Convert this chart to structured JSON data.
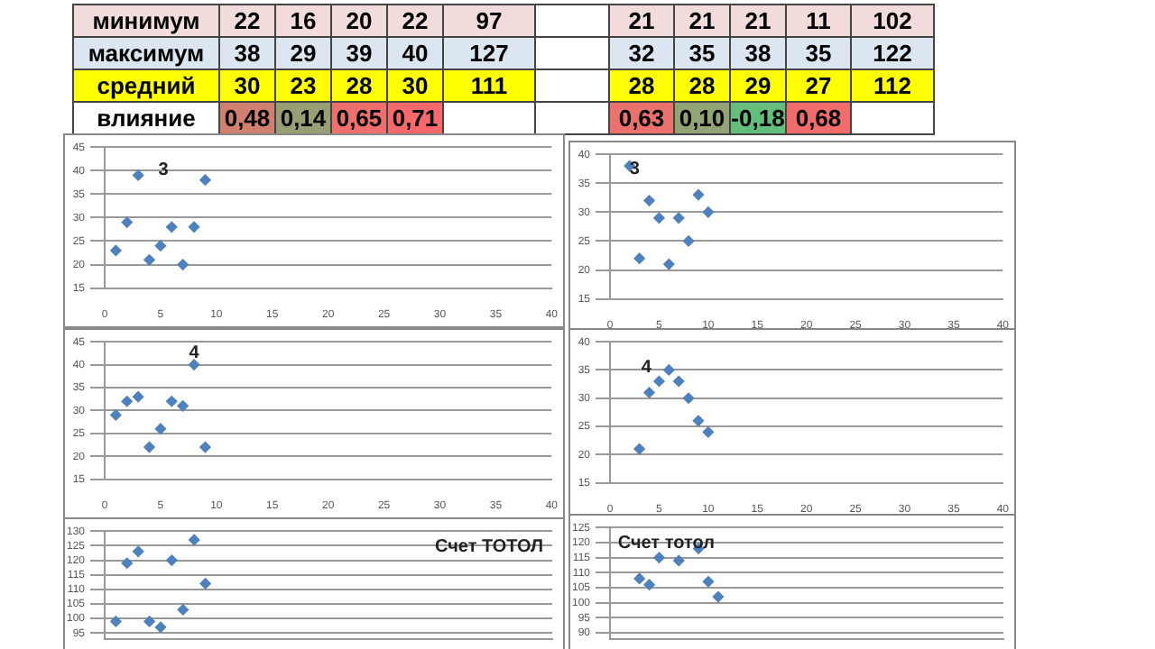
{
  "chart_data": [
    {
      "type": "other",
      "categories": [
        null,
        null,
        null,
        null,
        null,
        null,
        null,
        null,
        null,
        null,
        null
      ],
      "y_categories": [
        "минимум",
        "максимум",
        "средний",
        "влияние"
      ],
      "cell_labels": [
        [
          "22",
          "16",
          "20",
          "22",
          "97",
          null,
          "21",
          "21",
          "21",
          "11",
          "102"
        ],
        [
          "38",
          "29",
          "39",
          "40",
          "127",
          null,
          "32",
          "35",
          "38",
          "35",
          "122"
        ],
        [
          "30",
          "23",
          "28",
          "30",
          "111",
          null,
          "28",
          "28",
          "29",
          "27",
          "112"
        ],
        [
          "0,48",
          "0,14",
          "0,65",
          "0,71",
          null,
          null,
          "0,63",
          "0,10",
          "-0,18",
          "0,68",
          null
        ]
      ]
    },
    {
      "type": "scatter",
      "x": [
        1,
        2,
        3,
        4,
        5,
        6,
        7,
        8,
        9
      ],
      "values": [
        23,
        29,
        39,
        21,
        24,
        28,
        20,
        28,
        38
      ],
      "color": "#4f81bd",
      "marker": "diamond",
      "xlim": [
        0,
        40
      ],
      "xticks": [
        0,
        5,
        10,
        15,
        20,
        25,
        30,
        35,
        40
      ],
      "ylim": [
        15,
        45
      ],
      "yticks": [
        15,
        20,
        25,
        30,
        35,
        40,
        45
      ],
      "grid": "y",
      "annotations": [
        "3"
      ]
    },
    {
      "type": "scatter",
      "x": [
        2,
        3,
        4,
        5,
        6,
        7,
        8,
        9,
        10
      ],
      "values": [
        38,
        22,
        32,
        29,
        21,
        29,
        25,
        33,
        30
      ],
      "color": "#4f81bd",
      "marker": "diamond",
      "xlim": [
        0,
        40
      ],
      "xticks": [
        0,
        5,
        10,
        15,
        20,
        25,
        30,
        35,
        40
      ],
      "ylim": [
        15,
        40
      ],
      "yticks": [
        15,
        20,
        25,
        30,
        35,
        40
      ],
      "grid": "y",
      "annotations": [
        {
          "text": "3",
          "x": 2.5,
          "y": 37.5
        }
      ]
    },
    {
      "type": "scatter",
      "x": [
        1,
        2,
        3,
        4,
        5,
        6,
        7,
        8,
        9
      ],
      "values": [
        29,
        32,
        33,
        22,
        26,
        32,
        31,
        40,
        22
      ],
      "color": "#4f81bd",
      "marker": "diamond",
      "xlim": [
        0,
        40
      ],
      "xticks": [
        0,
        5,
        10,
        15,
        20,
        25,
        30,
        35,
        40
      ],
      "ylim": [
        15,
        45
      ],
      "yticks": [
        15,
        20,
        25,
        30,
        35,
        40,
        45
      ],
      "grid": "y",
      "annotations": [
        {
          "text": "4",
          "x": 8,
          "y": 42.5
        }
      ]
    },
    {
      "type": "scatter",
      "x": [
        3,
        4,
        5,
        6,
        7,
        8,
        9,
        10
      ],
      "values": [
        21,
        31,
        33,
        35,
        33,
        30,
        26,
        24
      ],
      "color": "#4f81bd",
      "marker": "diamond",
      "xlim": [
        0,
        40
      ],
      "xticks": [
        0,
        5,
        10,
        15,
        20,
        25,
        30,
        35,
        40
      ],
      "ylim": [
        15,
        40
      ],
      "yticks": [
        15,
        20,
        25,
        30,
        35,
        40
      ],
      "grid": "y",
      "annotations": [
        "4"
      ]
    },
    {
      "type": "scatter",
      "x": [
        1,
        2,
        3,
        4,
        5,
        6,
        7,
        8,
        9
      ],
      "values": [
        99,
        119,
        123,
        99,
        97,
        120,
        103,
        127,
        112
      ],
      "color": "#4f81bd",
      "marker": "diamond",
      "xlim": [
        0,
        40
      ],
      "ylim": [
        93,
        130
      ],
      "yticks": [
        95,
        100,
        105,
        110,
        115,
        120,
        125,
        130
      ],
      "grid": "y",
      "tick_labels": "y",
      "annotations": [
        "Счет ТОТОЛ"
      ]
    },
    {
      "type": "scatter",
      "x": [
        3,
        4,
        5,
        7,
        9,
        10,
        11
      ],
      "values": [
        108,
        106,
        115,
        114,
        118,
        107,
        102
      ],
      "color": "#4f81bd",
      "marker": "diamond",
      "xlim": [
        0,
        40
      ],
      "ylim": [
        88,
        125
      ],
      "yticks": [
        90,
        95,
        100,
        105,
        110,
        115,
        120,
        125
      ],
      "grid": "y",
      "tick_labels": "y",
      "annotations": [
        "Счет тотол"
      ]
    }
  ]
}
